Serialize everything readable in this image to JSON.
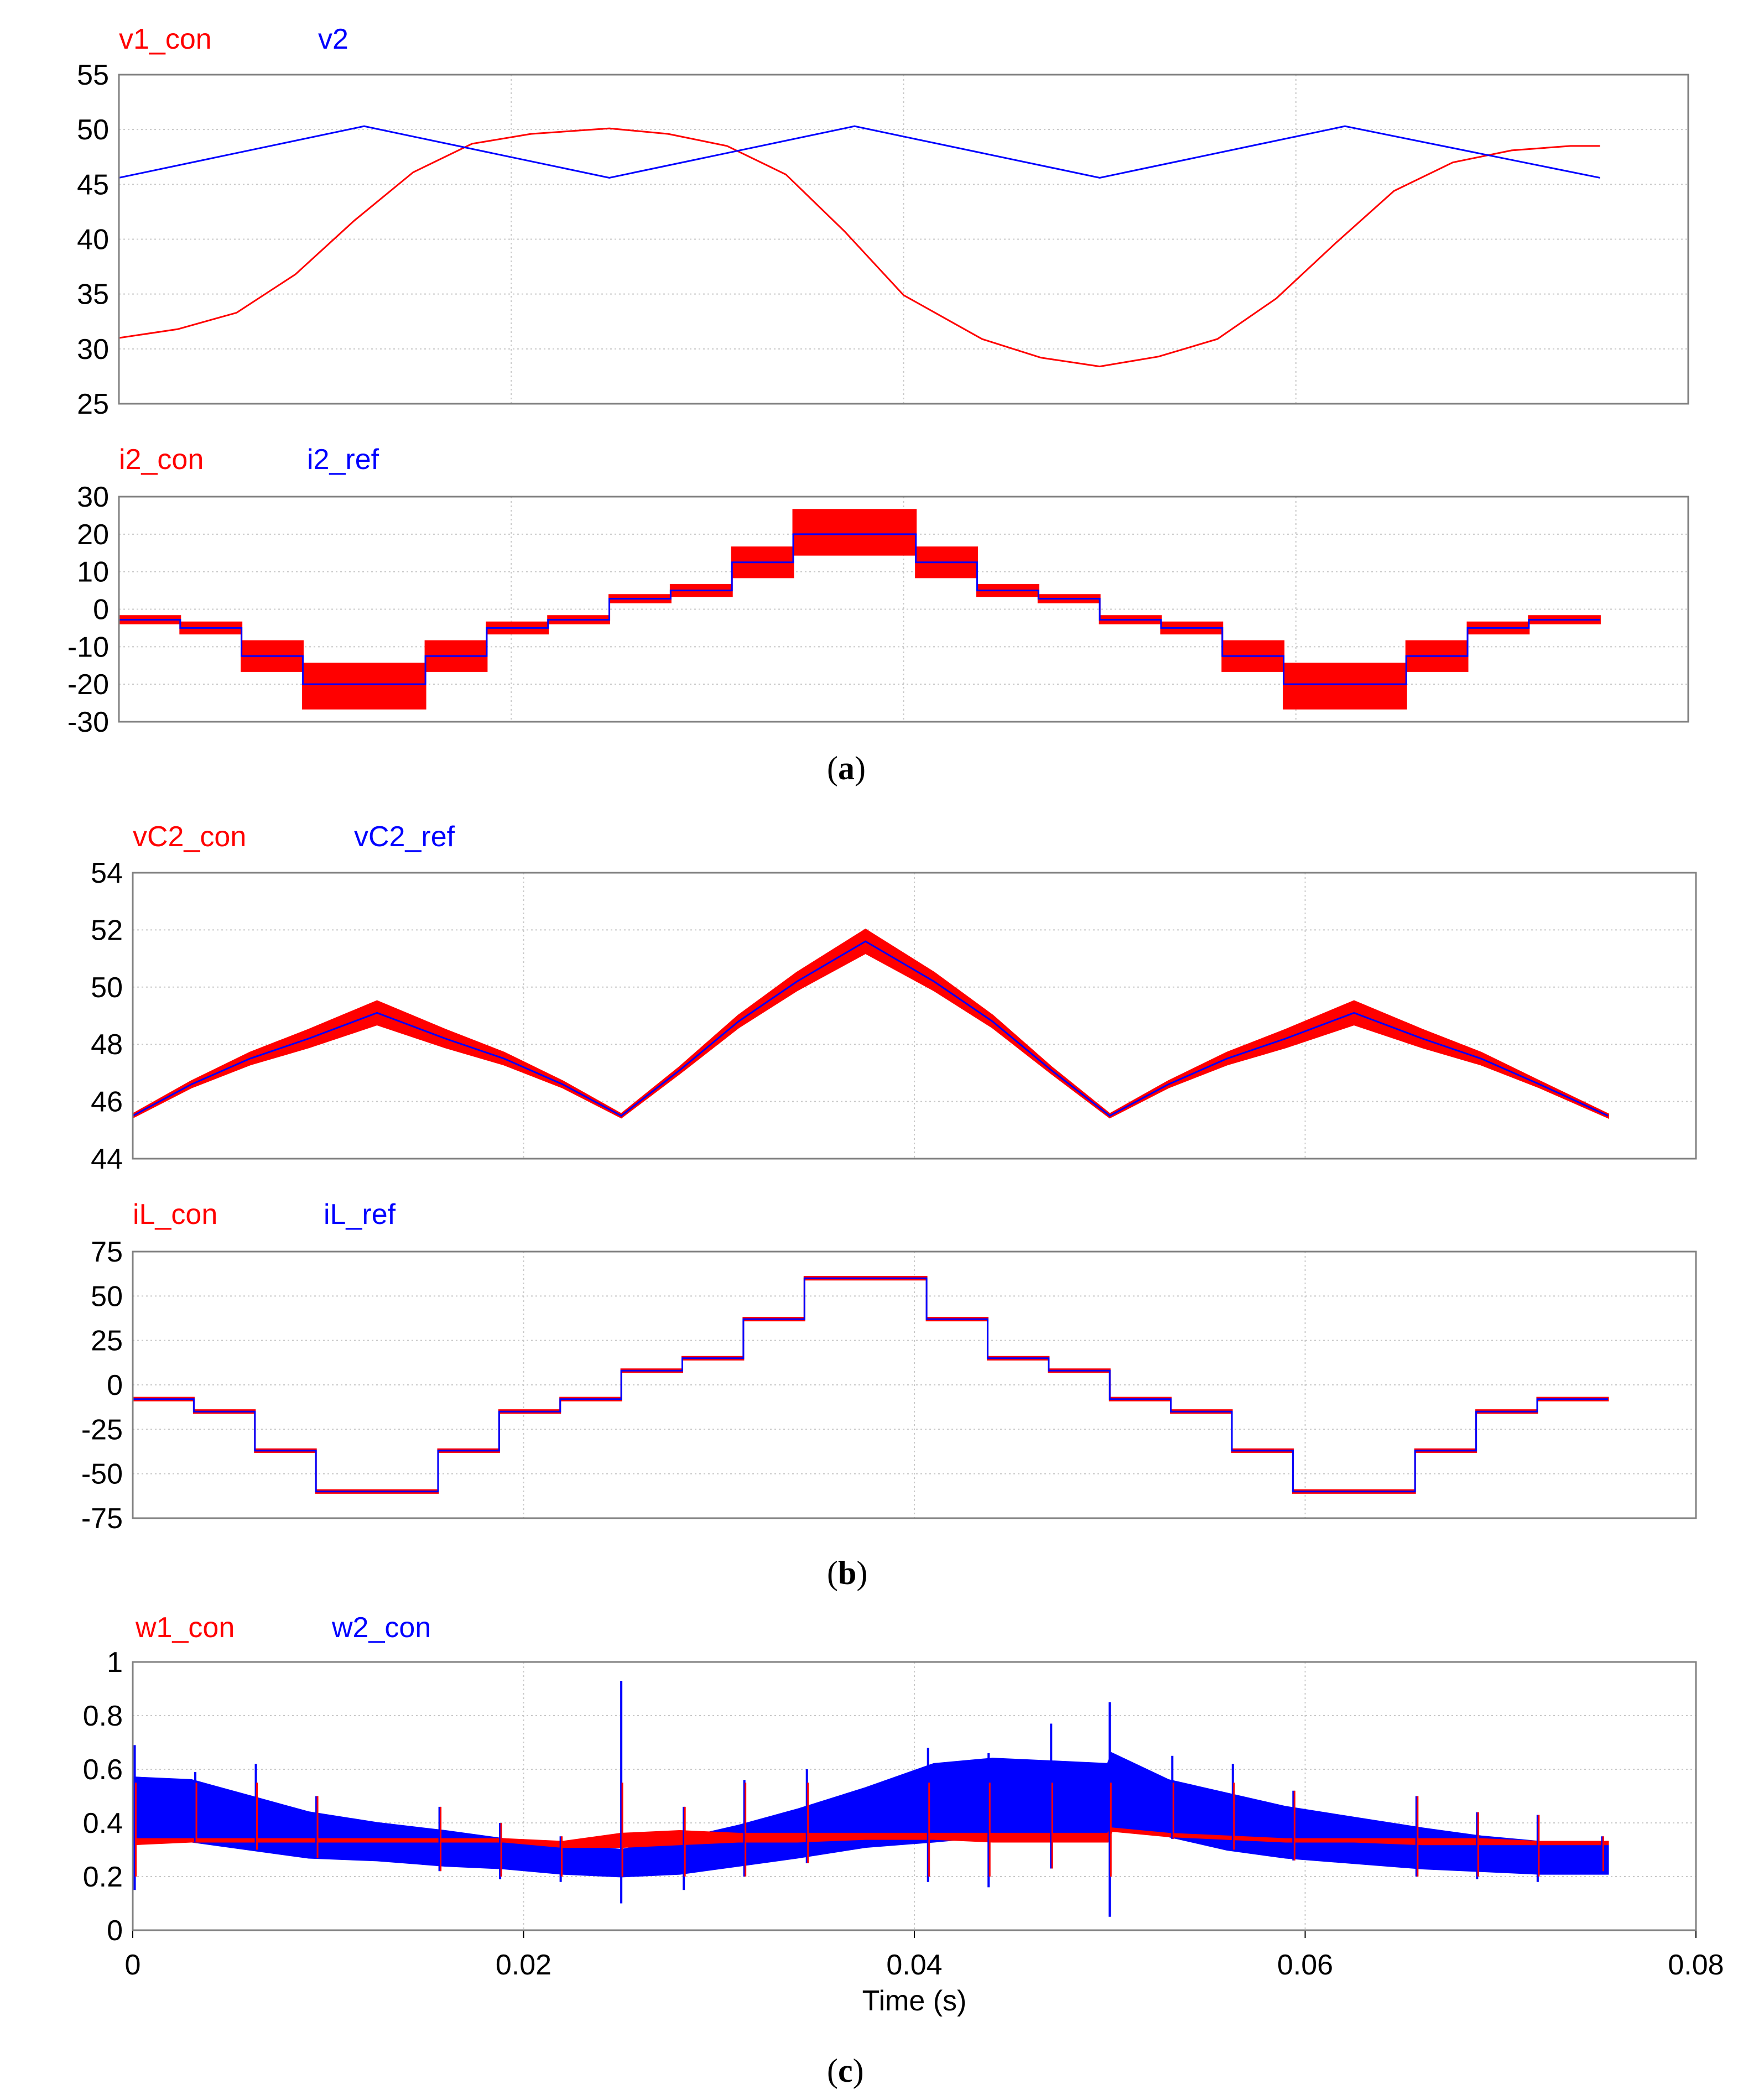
{
  "figure": {
    "captions": [
      {
        "open": "(",
        "letter": "a",
        "close": ")"
      },
      {
        "open": "(",
        "letter": "b",
        "close": ")"
      },
      {
        "open": "(",
        "letter": "c",
        "close": ")"
      }
    ],
    "colors": {
      "red": "#ff0000",
      "blue": "#0000ff",
      "grid": "#c8c8c8",
      "frame": "#808080"
    }
  },
  "chart_data": [
    {
      "id": "v1-v2",
      "type": "line",
      "panel": "a",
      "legend": [
        "v1_con",
        "v2"
      ],
      "xlim": [
        0,
        0.08
      ],
      "ylim": [
        25,
        55
      ],
      "yticks": [
        "55",
        "50",
        "45",
        "40",
        "35",
        "30",
        "25"
      ],
      "xticks": [],
      "series": [
        {
          "name": "v1_con",
          "color": "#ff0000",
          "x": [
            0,
            0.003,
            0.006,
            0.009,
            0.012,
            0.015,
            0.018,
            0.021,
            0.025,
            0.028,
            0.031,
            0.034,
            0.037,
            0.04,
            0.044,
            0.047,
            0.05,
            0.053,
            0.056,
            0.059,
            0.062,
            0.065,
            0.068,
            0.071,
            0.074,
            0.0755
          ],
          "y": [
            31,
            31.8,
            33.3,
            36.8,
            41.7,
            46.1,
            48.7,
            49.6,
            50.1,
            49.6,
            48.5,
            45.9,
            40.7,
            34.9,
            30.9,
            29.2,
            28.4,
            29.3,
            30.9,
            34.6,
            39.6,
            44.4,
            47.0,
            48.1,
            48.5,
            48.5
          ]
        },
        {
          "name": "v2",
          "color": "#0000ff",
          "x": [
            0,
            0.0125,
            0.025,
            0.0375,
            0.05,
            0.0625,
            0.0755
          ],
          "y": [
            45.6,
            50.3,
            45.6,
            50.3,
            45.6,
            50.3,
            45.6
          ]
        }
      ]
    },
    {
      "id": "i2",
      "type": "step",
      "panel": "a",
      "legend": [
        "i2_con",
        "i2_ref"
      ],
      "xlim": [
        0,
        0.08
      ],
      "ylim": [
        -30,
        30
      ],
      "yticks": [
        "30",
        "20",
        "10",
        "0",
        "-10",
        "-20",
        "-30"
      ],
      "xticks": [],
      "series": [
        {
          "name": "i2_con",
          "color": "#ff0000",
          "ripple_band": true,
          "x": [
            0,
            0.003125,
            0.00625,
            0.009375,
            0.0125,
            0.015625,
            0.01875,
            0.021875,
            0.025,
            0.028125,
            0.03125,
            0.034375,
            0.0375,
            0.040625,
            0.04375,
            0.046875,
            0.05,
            0.053125,
            0.05625,
            0.059375,
            0.0625,
            0.065625,
            0.06875,
            0.071875,
            0.0755
          ],
          "y": [
            -2.8,
            -5,
            -12.5,
            -20.5,
            -20.5,
            -12.5,
            -5,
            -2.8,
            2.8,
            5,
            12.5,
            20.5,
            20.5,
            12.5,
            5,
            2.8,
            -2.8,
            -5,
            -12.5,
            -20.5,
            -20.5,
            -12.5,
            -5,
            -2.8,
            -2.8
          ],
          "ripple": [
            1,
            1.5,
            4,
            6,
            6,
            4,
            1.5,
            1,
            1,
            1.5,
            4,
            6,
            6,
            4,
            1.5,
            1,
            1,
            1.5,
            4,
            6,
            6,
            4,
            1.5,
            1,
            1
          ]
        },
        {
          "name": "i2_ref",
          "color": "#0000ff",
          "x": [
            0,
            0.003125,
            0.00625,
            0.009375,
            0.0125,
            0.015625,
            0.01875,
            0.021875,
            0.025,
            0.028125,
            0.03125,
            0.034375,
            0.0375,
            0.040625,
            0.04375,
            0.046875,
            0.05,
            0.053125,
            0.05625,
            0.059375,
            0.0625,
            0.065625,
            0.06875,
            0.071875,
            0.0755
          ],
          "y": [
            -2.8,
            -5,
            -12.5,
            -20,
            -20,
            -12.5,
            -5,
            -2.8,
            2.8,
            5,
            12.5,
            20,
            20,
            12.5,
            5,
            2.8,
            -2.8,
            -5,
            -12.5,
            -20,
            -20,
            -12.5,
            -5,
            -2.8,
            -2.8
          ]
        }
      ]
    },
    {
      "id": "vc2",
      "type": "line",
      "panel": "b",
      "legend": [
        "vC2_con",
        "vC2_ref"
      ],
      "xlim": [
        0,
        0.08
      ],
      "ylim": [
        44,
        54
      ],
      "yticks": [
        "54",
        "52",
        "50",
        "48",
        "46",
        "44"
      ],
      "xticks": [],
      "series": [
        {
          "name": "vC2_con",
          "color": "#ff0000",
          "ripple_band": true,
          "x": [
            0,
            0.003,
            0.006,
            0.009,
            0.0125,
            0.016,
            0.019,
            0.022,
            0.025,
            0.028,
            0.031,
            0.034,
            0.0375,
            0.041,
            0.044,
            0.047,
            0.05,
            0.053,
            0.056,
            0.059,
            0.0625,
            0.066,
            0.069,
            0.072,
            0.0755
          ],
          "y": [
            45.5,
            46.6,
            47.5,
            48.2,
            49.1,
            48.2,
            47.5,
            46.6,
            45.5,
            47.1,
            48.8,
            50.2,
            51.6,
            50.2,
            48.8,
            47.1,
            45.5,
            46.6,
            47.5,
            48.2,
            49.1,
            48.2,
            47.5,
            46.6,
            45.5
          ],
          "ripple": [
            0.05,
            0.1,
            0.2,
            0.3,
            0.4,
            0.3,
            0.2,
            0.1,
            0.05,
            0.1,
            0.2,
            0.3,
            0.4,
            0.3,
            0.2,
            0.1,
            0.05,
            0.1,
            0.2,
            0.3,
            0.4,
            0.3,
            0.2,
            0.1,
            0.05
          ]
        },
        {
          "name": "vC2_ref",
          "color": "#0000ff",
          "x": [
            0,
            0.003,
            0.006,
            0.009,
            0.0125,
            0.016,
            0.019,
            0.022,
            0.025,
            0.028,
            0.031,
            0.034,
            0.0375,
            0.041,
            0.044,
            0.047,
            0.05,
            0.053,
            0.056,
            0.059,
            0.0625,
            0.066,
            0.069,
            0.072,
            0.0755
          ],
          "y": [
            45.5,
            46.6,
            47.5,
            48.2,
            49.1,
            48.2,
            47.5,
            46.6,
            45.5,
            47.1,
            48.8,
            50.2,
            51.6,
            50.2,
            48.8,
            47.1,
            45.5,
            46.6,
            47.5,
            48.2,
            49.1,
            48.2,
            47.5,
            46.6,
            45.5
          ]
        }
      ]
    },
    {
      "id": "iL",
      "type": "step",
      "panel": "b",
      "legend": [
        "iL_con",
        "iL_ref"
      ],
      "xlim": [
        0,
        0.08
      ],
      "ylim": [
        -75,
        75
      ],
      "yticks": [
        "75",
        "50",
        "25",
        "0",
        "-25",
        "-50",
        "-75"
      ],
      "xticks": [],
      "series": [
        {
          "name": "iL_con",
          "color": "#ff0000",
          "ripple_band": true,
          "x": [
            0,
            0.003125,
            0.00625,
            0.009375,
            0.0125,
            0.015625,
            0.01875,
            0.021875,
            0.025,
            0.028125,
            0.03125,
            0.034375,
            0.0375,
            0.040625,
            0.04375,
            0.046875,
            0.05,
            0.053125,
            0.05625,
            0.059375,
            0.0625,
            0.065625,
            0.06875,
            0.071875,
            0.0755
          ],
          "y": [
            -8,
            -15,
            -37,
            -60,
            -60,
            -37,
            -15,
            -8,
            8,
            15,
            37,
            60,
            60,
            37,
            15,
            8,
            -8,
            -15,
            -37,
            -60,
            -60,
            -37,
            -15,
            -8,
            -8
          ],
          "ripple": [
            0.8,
            0.8,
            0.8,
            0.8,
            0.8,
            0.8,
            0.8,
            0.8,
            0.8,
            0.8,
            0.8,
            0.8,
            0.8,
            0.8,
            0.8,
            0.8,
            0.8,
            0.8,
            0.8,
            0.8,
            0.8,
            0.8,
            0.8,
            0.8,
            0.8
          ]
        },
        {
          "name": "iL_ref",
          "color": "#0000ff",
          "x": [
            0,
            0.003125,
            0.00625,
            0.009375,
            0.0125,
            0.015625,
            0.01875,
            0.021875,
            0.025,
            0.028125,
            0.03125,
            0.034375,
            0.0375,
            0.040625,
            0.04375,
            0.046875,
            0.05,
            0.053125,
            0.05625,
            0.059375,
            0.0625,
            0.065625,
            0.06875,
            0.071875,
            0.0755
          ],
          "y": [
            -8,
            -15,
            -37,
            -60,
            -60,
            -37,
            -15,
            -8,
            8,
            15,
            37,
            60,
            60,
            37,
            15,
            8,
            -8,
            -15,
            -37,
            -60,
            -60,
            -37,
            -15,
            -8,
            -8
          ]
        }
      ]
    },
    {
      "id": "w",
      "type": "area",
      "panel": "c",
      "legend": [
        "w1_con",
        "w2_con"
      ],
      "xlim": [
        0,
        0.08
      ],
      "ylim": [
        0,
        1
      ],
      "yticks": [
        "1",
        "0.8",
        "0.6",
        "0.4",
        "0.2",
        "0"
      ],
      "xticks": [
        "0",
        "0.02",
        "0.04",
        "0.06",
        "0.08"
      ],
      "xlabel": "Time (s)",
      "series": [
        {
          "name": "w2_con",
          "color": "#0000ff",
          "band": true,
          "x": [
            0,
            0.003,
            0.006,
            0.009,
            0.0125,
            0.016,
            0.019,
            0.022,
            0.025,
            0.028,
            0.031,
            0.034,
            0.0375,
            0.041,
            0.044,
            0.047,
            0.0499,
            0.0501,
            0.053,
            0.056,
            0.059,
            0.0625,
            0.066,
            0.069,
            0.072,
            0.0755
          ],
          "upper": [
            0.57,
            0.56,
            0.5,
            0.44,
            0.4,
            0.37,
            0.34,
            0.32,
            0.3,
            0.34,
            0.39,
            0.45,
            0.53,
            0.62,
            0.64,
            0.63,
            0.62,
            0.66,
            0.56,
            0.51,
            0.46,
            0.42,
            0.38,
            0.35,
            0.33,
            0.32
          ],
          "lower": [
            0.34,
            0.33,
            0.3,
            0.27,
            0.26,
            0.24,
            0.23,
            0.21,
            0.2,
            0.21,
            0.24,
            0.27,
            0.31,
            0.33,
            0.35,
            0.36,
            0.36,
            0.38,
            0.35,
            0.3,
            0.27,
            0.25,
            0.23,
            0.22,
            0.21,
            0.21
          ]
        },
        {
          "name": "w1_con",
          "color": "#ff0000",
          "band": true,
          "x": [
            0,
            0.003,
            0.006,
            0.009,
            0.0125,
            0.016,
            0.019,
            0.022,
            0.025,
            0.028,
            0.031,
            0.034,
            0.0375,
            0.041,
            0.044,
            0.047,
            0.0499,
            0.0501,
            0.053,
            0.056,
            0.059,
            0.0625,
            0.066,
            0.069,
            0.072,
            0.0755
          ],
          "upper": [
            0.34,
            0.34,
            0.34,
            0.34,
            0.34,
            0.34,
            0.34,
            0.33,
            0.36,
            0.37,
            0.36,
            0.36,
            0.36,
            0.36,
            0.36,
            0.36,
            0.36,
            0.38,
            0.36,
            0.35,
            0.34,
            0.34,
            0.34,
            0.34,
            0.33,
            0.33
          ],
          "lower": [
            0.32,
            0.33,
            0.33,
            0.33,
            0.33,
            0.33,
            0.33,
            0.31,
            0.31,
            0.32,
            0.33,
            0.33,
            0.34,
            0.34,
            0.33,
            0.33,
            0.33,
            0.37,
            0.35,
            0.34,
            0.33,
            0.33,
            0.32,
            0.32,
            0.32,
            0.32
          ]
        }
      ],
      "spikes": [
        {
          "x": 0.0001,
          "top": 0.69,
          "bottom": 0.15
        },
        {
          "x": 0.0032,
          "top": 0.59,
          "bottom": 0.33
        },
        {
          "x": 0.0063,
          "top": 0.62,
          "bottom": 0.3
        },
        {
          "x": 0.0094,
          "top": 0.5,
          "bottom": 0.27
        },
        {
          "x": 0.0157,
          "top": 0.46,
          "bottom": 0.22
        },
        {
          "x": 0.0188,
          "top": 0.4,
          "bottom": 0.19
        },
        {
          "x": 0.0219,
          "top": 0.35,
          "bottom": 0.18
        },
        {
          "x": 0.025,
          "top": 0.93,
          "bottom": 0.1
        },
        {
          "x": 0.0282,
          "top": 0.46,
          "bottom": 0.15
        },
        {
          "x": 0.0313,
          "top": 0.56,
          "bottom": 0.2
        },
        {
          "x": 0.0345,
          "top": 0.6,
          "bottom": 0.25
        },
        {
          "x": 0.0407,
          "top": 0.68,
          "bottom": 0.18
        },
        {
          "x": 0.0438,
          "top": 0.66,
          "bottom": 0.16
        },
        {
          "x": 0.047,
          "top": 0.77,
          "bottom": 0.23
        },
        {
          "x": 0.05,
          "top": 0.85,
          "bottom": 0.05
        },
        {
          "x": 0.0532,
          "top": 0.65,
          "bottom": 0.34
        },
        {
          "x": 0.0563,
          "top": 0.62,
          "bottom": 0.3
        },
        {
          "x": 0.0594,
          "top": 0.52,
          "bottom": 0.26
        },
        {
          "x": 0.0657,
          "top": 0.5,
          "bottom": 0.2
        },
        {
          "x": 0.0688,
          "top": 0.44,
          "bottom": 0.19
        },
        {
          "x": 0.0719,
          "top": 0.43,
          "bottom": 0.18
        },
        {
          "x": 0.0752,
          "top": 0.35,
          "bottom": 0.22
        }
      ]
    }
  ]
}
